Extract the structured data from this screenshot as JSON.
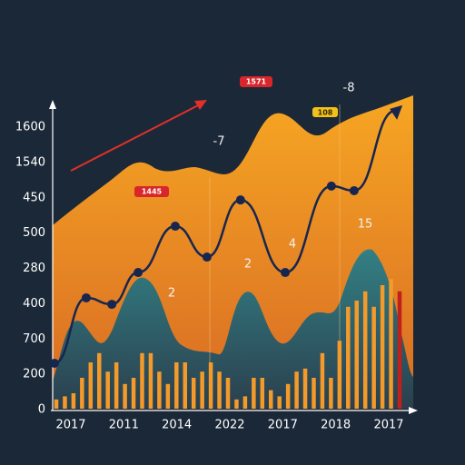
{
  "chart_data": {
    "type": "line",
    "x_labels": [
      "2017",
      "2011",
      "2014",
      "2022",
      "2017",
      "2018",
      "2017"
    ],
    "y_labels": [
      "1600",
      "1540",
      "450",
      "500",
      "280",
      "400",
      "700",
      "200",
      "0"
    ],
    "xlim": [
      0,
      100
    ],
    "ylim": [
      0,
      100
    ],
    "series": [
      {
        "color": "#17264f",
        "x": [
          0.5,
          9.3,
          16.4,
          23.7,
          34,
          42.8,
          52.1,
          64.5,
          77.3,
          83.6,
          95
        ],
        "values": [
          14.7,
          35.9,
          33.8,
          44.1,
          59.1,
          49.1,
          67.6,
          44.1,
          72.1,
          70.6,
          96.5
        ]
      }
    ],
    "bars": {
      "color": "#f39a2b",
      "last_color": "#c0201b",
      "values": [
        3,
        4,
        5,
        10,
        15,
        18,
        12,
        15,
        8,
        10,
        18,
        18,
        12,
        8,
        15,
        15,
        10,
        12,
        15,
        12,
        10,
        3,
        4,
        10,
        10,
        6,
        4,
        8,
        12,
        13,
        10,
        18,
        10,
        22,
        33,
        35,
        38,
        33,
        40,
        42,
        38
      ]
    },
    "annotations": [
      "-7",
      "-8",
      "15",
      "4",
      "2",
      "2"
    ],
    "badges": [
      "1571",
      "1445",
      "108"
    ]
  }
}
